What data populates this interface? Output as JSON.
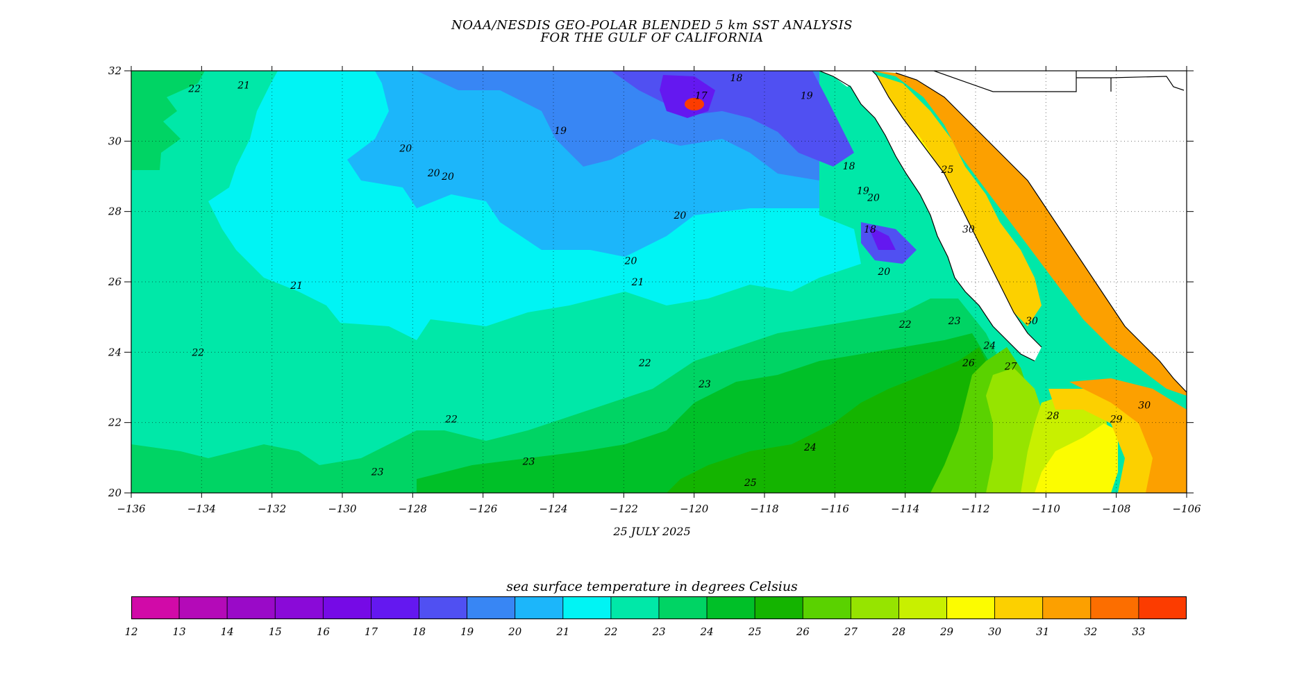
{
  "title": {
    "line1": "NOAA/NESDIS GEO-POLAR BLENDED 5 km SST ANALYSIS",
    "line2": "FOR THE GULF OF CALIFORNIA"
  },
  "date": "25 JULY 2025",
  "map": {
    "lon_range": [
      -136,
      -106
    ],
    "lat_range": [
      20,
      32
    ],
    "x_ticks": [
      "−136",
      "−134",
      "−132",
      "−130",
      "−128",
      "−126",
      "−124",
      "−122",
      "−120",
      "−118",
      "−116",
      "−114",
      "−112",
      "−110",
      "−108",
      "−106"
    ],
    "y_ticks": [
      "20",
      "22",
      "24",
      "26",
      "28",
      "30",
      "32"
    ],
    "grid": "dotted",
    "land_color": "#ffffff",
    "contour_labels": [
      {
        "text": "22",
        "lon": -134.2,
        "lat": 31.4
      },
      {
        "text": "21",
        "lon": -132.8,
        "lat": 31.5
      },
      {
        "text": "18",
        "lon": -118.8,
        "lat": 31.7
      },
      {
        "text": "17",
        "lon": -119.8,
        "lat": 31.2
      },
      {
        "text": "19",
        "lon": -116.8,
        "lat": 31.2
      },
      {
        "text": "19",
        "lon": -123.8,
        "lat": 30.2
      },
      {
        "text": "20",
        "lon": -128.2,
        "lat": 29.7
      },
      {
        "text": "20",
        "lon": -127.4,
        "lat": 29.0
      },
      {
        "text": "20",
        "lon": -127.0,
        "lat": 28.9
      },
      {
        "text": "20",
        "lon": -120.4,
        "lat": 27.8
      },
      {
        "text": "20",
        "lon": -121.8,
        "lat": 26.5
      },
      {
        "text": "18",
        "lon": -115.6,
        "lat": 29.2
      },
      {
        "text": "19",
        "lon": -115.2,
        "lat": 28.5
      },
      {
        "text": "20",
        "lon": -114.9,
        "lat": 28.3
      },
      {
        "text": "18",
        "lon": -115.0,
        "lat": 27.4
      },
      {
        "text": "20",
        "lon": -114.6,
        "lat": 26.2
      },
      {
        "text": "21",
        "lon": -131.3,
        "lat": 25.8
      },
      {
        "text": "21",
        "lon": -121.6,
        "lat": 25.9
      },
      {
        "text": "22",
        "lon": -134.1,
        "lat": 23.9
      },
      {
        "text": "22",
        "lon": -121.4,
        "lat": 23.6
      },
      {
        "text": "22",
        "lon": -114.0,
        "lat": 24.7
      },
      {
        "text": "23",
        "lon": -112.6,
        "lat": 24.8
      },
      {
        "text": "24",
        "lon": -111.6,
        "lat": 24.1
      },
      {
        "text": "26",
        "lon": -112.2,
        "lat": 23.6
      },
      {
        "text": "27",
        "lon": -111.0,
        "lat": 23.5
      },
      {
        "text": "22",
        "lon": -126.9,
        "lat": 22.0
      },
      {
        "text": "23",
        "lon": -119.7,
        "lat": 23.0
      },
      {
        "text": "23",
        "lon": -124.7,
        "lat": 20.8
      },
      {
        "text": "23",
        "lon": -129.0,
        "lat": 20.5
      },
      {
        "text": "24",
        "lon": -116.7,
        "lat": 21.2
      },
      {
        "text": "25",
        "lon": -118.4,
        "lat": 20.2
      },
      {
        "text": "25",
        "lon": -112.8,
        "lat": 29.1
      },
      {
        "text": "30",
        "lon": -112.2,
        "lat": 27.4
      },
      {
        "text": "30",
        "lon": -110.4,
        "lat": 24.8
      },
      {
        "text": "28",
        "lon": -109.8,
        "lat": 22.1
      },
      {
        "text": "29",
        "lon": -108.0,
        "lat": 22.0
      },
      {
        "text": "30",
        "lon": -107.2,
        "lat": 22.4
      }
    ]
  },
  "legend": {
    "title": "sea surface temperature in degrees Celsius",
    "values": [
      "12",
      "13",
      "14",
      "15",
      "16",
      "17",
      "18",
      "19",
      "20",
      "21",
      "22",
      "23",
      "24",
      "25",
      "26",
      "27",
      "28",
      "29",
      "30",
      "31",
      "32",
      "33"
    ],
    "colors": [
      "#d10aa8",
      "#b40ab8",
      "#9a0ac8",
      "#8a0ad8",
      "#760ae6",
      "#6418f0",
      "#5050f2",
      "#3886f4",
      "#1cb6fa",
      "#00f4f4",
      "#00e8a8",
      "#00d464",
      "#00c028",
      "#14b400",
      "#5ad200",
      "#96e400",
      "#c8f000",
      "#fcfc00",
      "#fcd000",
      "#fca000",
      "#fc6e00",
      "#fc3c00"
    ]
  }
}
